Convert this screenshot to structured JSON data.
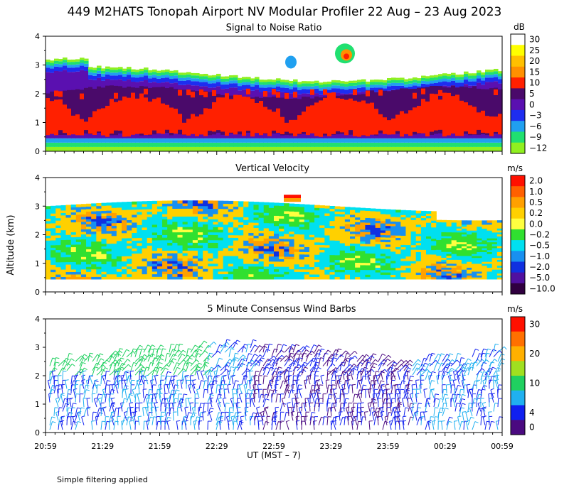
{
  "title": "449 M2HATS Tonopah Airport NV Modular Profiler 22 Aug – 23 Aug 2023",
  "ylabel": "Altitude (km)",
  "xlabel": "UT  (MST – 7)",
  "footnote": "Simple filtering applied",
  "chart_data": [
    {
      "type": "heatmap",
      "title": "Signal to Noise Ratio",
      "unit": "dB",
      "y_ticks": [
        "0",
        "1",
        "2",
        "3",
        "4"
      ],
      "ylim": [
        0,
        4
      ],
      "colorbar": [
        {
          "label": "30",
          "color": "#ffffff"
        },
        {
          "label": "25",
          "color": "#ffff00"
        },
        {
          "label": "20",
          "color": "#ffc000"
        },
        {
          "label": "15",
          "color": "#ff9000"
        },
        {
          "label": "10",
          "color": "#ff2000"
        },
        {
          "label": "5",
          "color": "#4a0a6a"
        },
        {
          "label": "0",
          "color": "#5a10b0"
        },
        {
          "label": "−3",
          "color": "#1e2df0"
        },
        {
          "label": "−6",
          "color": "#20a0f0"
        },
        {
          "label": "−9",
          "color": "#20e070"
        },
        {
          "label": "−12",
          "color": "#90f020"
        }
      ]
    },
    {
      "type": "heatmap",
      "title": "Vertical Velocity",
      "unit": "m/s",
      "y_ticks": [
        "0",
        "1",
        "2",
        "3",
        "4"
      ],
      "ylim": [
        0,
        4
      ],
      "colorbar": [
        {
          "label": "2.0",
          "color": "#ff1000"
        },
        {
          "label": "1.0",
          "color": "#ff6000"
        },
        {
          "label": "0.5",
          "color": "#ffa000"
        },
        {
          "label": "0.2",
          "color": "#ffd000"
        },
        {
          "label": "0.0",
          "color": "#ffff40"
        },
        {
          "label": "−0.2",
          "color": "#30e030"
        },
        {
          "label": "−0.5",
          "color": "#00e0f0"
        },
        {
          "label": "−1.0",
          "color": "#1890f0"
        },
        {
          "label": "−2.0",
          "color": "#1030e0"
        },
        {
          "label": "−5.0",
          "color": "#5010a0"
        },
        {
          "label": "−10.0",
          "color": "#300040"
        }
      ]
    },
    {
      "type": "scatter",
      "title": "5 Minute Consensus Wind Barbs",
      "unit": "m/s",
      "y_ticks": [
        "0",
        "1",
        "2",
        "3",
        "4"
      ],
      "ylim": [
        0,
        4
      ],
      "colorbar": [
        {
          "label": "30",
          "color": "#ff1000"
        },
        {
          "label": "",
          "color": "#ff7000"
        },
        {
          "label": "20",
          "color": "#ffb000"
        },
        {
          "label": "",
          "color": "#a0e020"
        },
        {
          "label": "10",
          "color": "#20d060"
        },
        {
          "label": "",
          "color": "#20b0f0"
        },
        {
          "label": "4",
          "color": "#1020f0"
        },
        {
          "label": "0",
          "color": "#4a0a80"
        }
      ]
    }
  ],
  "x_ticks": [
    "20:59",
    "21:29",
    "21:59",
    "22:29",
    "22:59",
    "23:29",
    "23:59",
    "00:29",
    "00:59"
  ]
}
